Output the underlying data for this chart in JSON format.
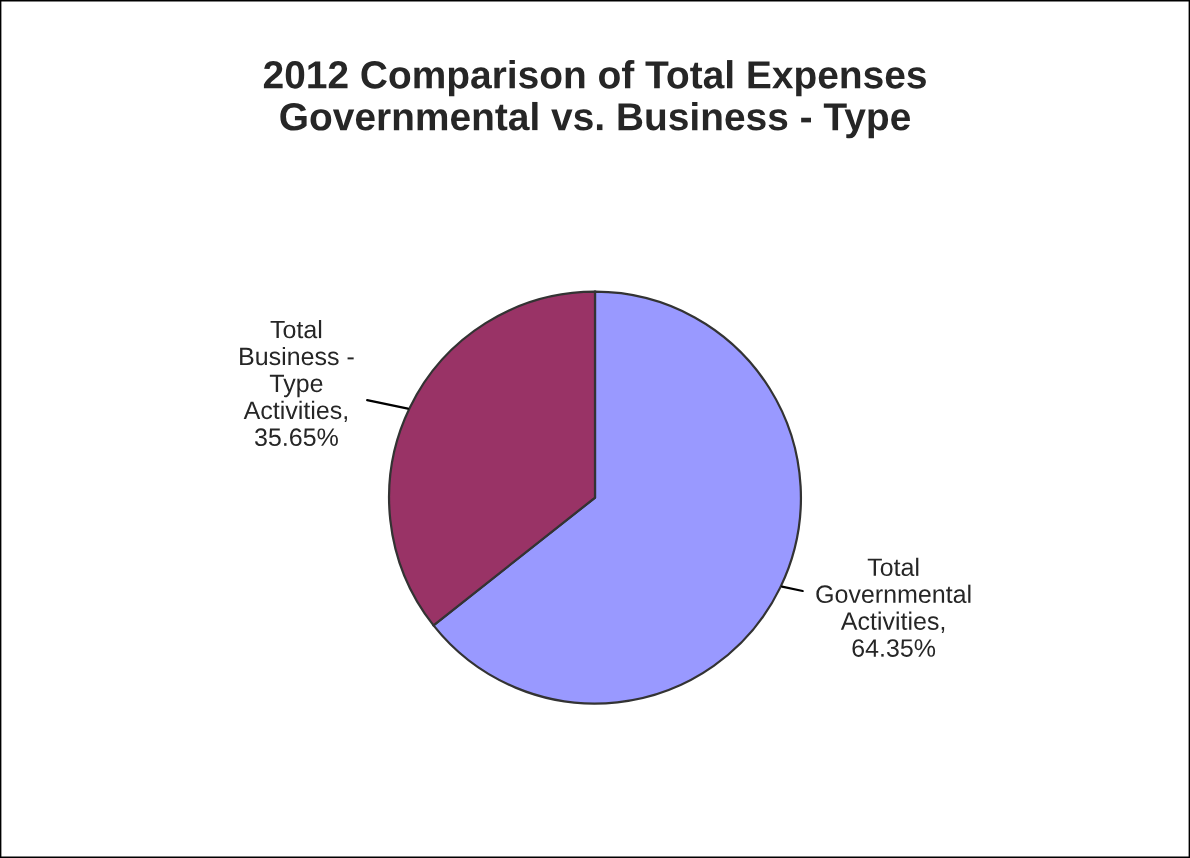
{
  "chart_data": {
    "type": "pie",
    "title": "2012 Comparison of Total Expenses\nGovernmental vs. Business - Type",
    "categories": [
      "Total\nGovernmental\nActivities",
      "Total\nBusiness -\nType\nActivities"
    ],
    "values": [
      64.35,
      35.65
    ],
    "value_labels": [
      ",\n64.35%",
      ",\n35.65%"
    ],
    "colors": [
      "#9999ff",
      "#993366"
    ],
    "legend": false
  }
}
